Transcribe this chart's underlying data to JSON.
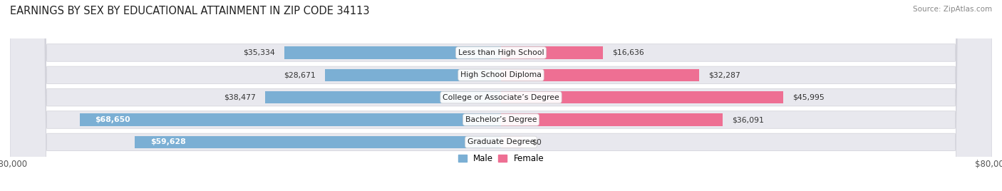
{
  "title": "EARNINGS BY SEX BY EDUCATIONAL ATTAINMENT IN ZIP CODE 34113",
  "source": "Source: ZipAtlas.com",
  "categories": [
    "Less than High School",
    "High School Diploma",
    "College or Associate’s Degree",
    "Bachelor’s Degree",
    "Graduate Degree"
  ],
  "male_values": [
    35334,
    28671,
    38477,
    68650,
    59628
  ],
  "female_values": [
    16636,
    32287,
    45995,
    36091,
    0
  ],
  "male_color": "#7bafd4",
  "female_color": "#ee6f93",
  "female_color_light": "#f5b8cb",
  "axis_max": 80000,
  "bg_color": "#ffffff",
  "row_bg_color": "#e8e8ee",
  "row_border_color": "#d0d0d8",
  "title_fontsize": 11,
  "source_fontsize": 8,
  "label_fontsize": 8,
  "tick_fontsize": 8.5
}
